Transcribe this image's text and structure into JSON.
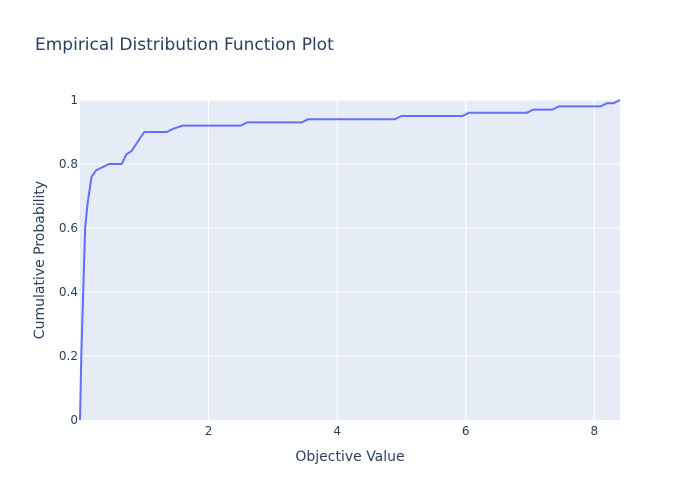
{
  "chart_data": {
    "type": "line",
    "title": "Empirical Distribution Function Plot",
    "xlabel": "Objective Value",
    "ylabel": "Cumulative Probability",
    "xlim": [
      0,
      8.4
    ],
    "ylim": [
      0,
      1
    ],
    "x_ticks": [
      2,
      4,
      6,
      8
    ],
    "x_tick_labels": [
      "2",
      "4",
      "6",
      "8"
    ],
    "y_ticks": [
      0,
      0.2,
      0.4,
      0.6,
      0.8,
      1
    ],
    "y_tick_labels": [
      "0",
      "0.2",
      "0.4",
      "0.6",
      "0.8",
      "1"
    ],
    "grid": true,
    "colors": {
      "line": "#636efa",
      "plot_bg": "#e5ecf6",
      "grid": "#ffffff",
      "text": "#2a3f5f"
    },
    "series": [
      {
        "x": [
          0,
          0.02,
          0.05,
          0.08,
          0.12,
          0.18,
          0.25,
          0.35,
          0.45,
          0.55,
          0.65,
          0.72,
          0.8,
          0.9,
          1.0,
          1.1,
          1.35,
          1.45,
          1.6,
          2.5,
          2.6,
          3.45,
          3.55,
          4.9,
          5.0,
          5.95,
          6.05,
          6.95,
          7.05,
          7.35,
          7.45,
          8.1,
          8.2,
          8.3,
          8.4
        ],
        "y": [
          0,
          0.2,
          0.4,
          0.6,
          0.68,
          0.76,
          0.78,
          0.79,
          0.8,
          0.8,
          0.8,
          0.83,
          0.84,
          0.87,
          0.9,
          0.9,
          0.9,
          0.91,
          0.92,
          0.92,
          0.93,
          0.93,
          0.94,
          0.94,
          0.95,
          0.95,
          0.96,
          0.96,
          0.97,
          0.97,
          0.98,
          0.98,
          0.99,
          0.99,
          1.0
        ]
      }
    ]
  }
}
